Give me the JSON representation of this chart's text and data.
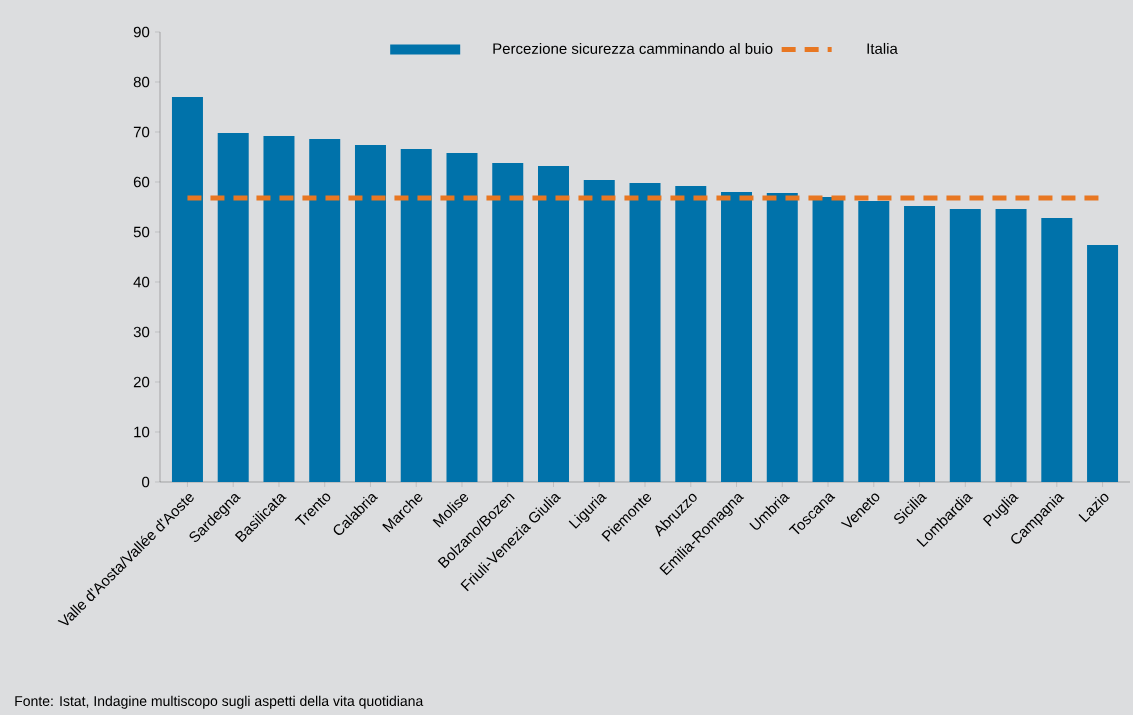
{
  "chart_data": {
    "type": "bar",
    "categories": [
      "Valle d'Aosta/Vallée d'Aoste",
      "Sardegna",
      "Basilicata",
      "Trento",
      "Calabria",
      "Marche",
      "Molise",
      "Bolzano/Bozen",
      "Friuli-Venezia Giulia",
      "Liguria",
      "Piemonte",
      "Abruzzo",
      "Emilia-Romagna",
      "Umbria",
      "Toscana",
      "Veneto",
      "Sicilia",
      "Lombardia",
      "Puglia",
      "Campania",
      "Lazio"
    ],
    "series": [
      {
        "name": "Percezione sicurezza camminando al buio",
        "color": "#0072aa",
        "values": [
          77.0,
          69.8,
          69.2,
          68.6,
          67.4,
          66.6,
          65.8,
          63.8,
          63.2,
          60.4,
          59.8,
          59.2,
          58.0,
          57.8,
          57.0,
          56.2,
          55.2,
          54.6,
          54.6,
          52.8,
          47.4
        ]
      },
      {
        "type": "line",
        "name": "Italia",
        "color": "#e87722",
        "line_style": "dashed",
        "values": [
          56.8,
          56.8,
          56.8,
          56.8,
          56.8,
          56.8,
          56.8,
          56.8,
          56.8,
          56.8,
          56.8,
          56.8,
          56.8,
          56.8,
          56.8,
          56.8,
          56.8,
          56.8,
          56.8,
          56.8,
          56.8
        ]
      }
    ],
    "ylim": [
      0,
      90
    ],
    "yticks": [
      0,
      10,
      20,
      30,
      40,
      50,
      60,
      70,
      80,
      90
    ],
    "legend": "top",
    "annotations": [
      "Fonte: Istat, Indagine multiscopo sugli aspetti della vita quotidiana"
    ]
  }
}
